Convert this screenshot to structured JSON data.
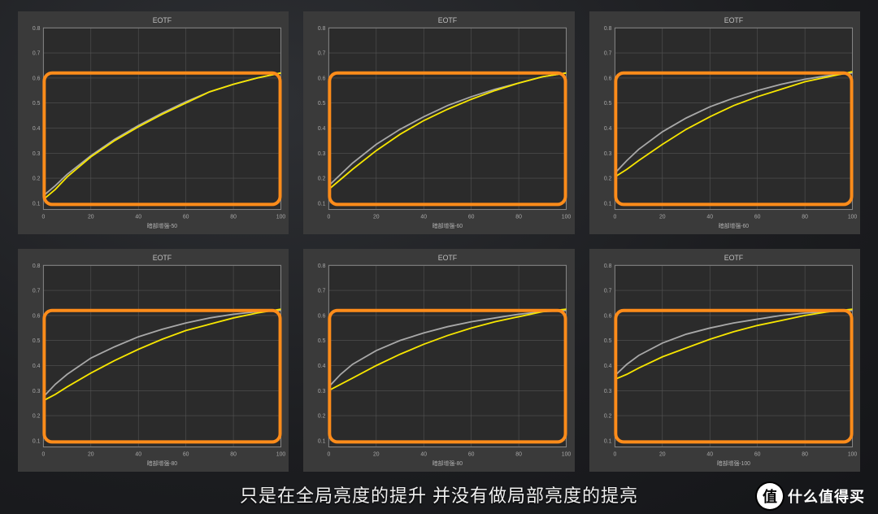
{
  "caption_text": "只是在全局亮度的提升 并没有做局部亮度的提亮",
  "watermark_badge": "值",
  "watermark_text": "什么值得买",
  "plot_style": {
    "panel_bg": "#3a3a3a",
    "plot_bg": "#2b2b2b",
    "grid_color": "#555555",
    "axis_color": "#888888",
    "ref_color": "#a8a8a8",
    "meas_color": "#f7e600",
    "highlight_color": "#ff8c1a",
    "highlight_radius": 10,
    "title_fontsize": 9,
    "tick_fontsize": 7,
    "xaxis_fontsize": 7
  },
  "shared_axes": {
    "title": "EOTF",
    "x_ticks": [
      0,
      20,
      40,
      60,
      80,
      100
    ],
    "y_ticks": [
      0.1,
      0.2,
      0.3,
      0.4,
      0.5,
      0.6,
      0.7,
      0.8
    ],
    "xlim": [
      0,
      100
    ],
    "ylim": [
      0.075,
      0.8
    ]
  },
  "charts": [
    {
      "xaxis_label": "暗部增强-50",
      "highlight_ylim": [
        0.095,
        0.62
      ],
      "reference_curve": [
        [
          0,
          0.13
        ],
        [
          5,
          0.17
        ],
        [
          10,
          0.215
        ],
        [
          20,
          0.29
        ],
        [
          30,
          0.355
        ],
        [
          40,
          0.41
        ],
        [
          50,
          0.46
        ],
        [
          60,
          0.505
        ],
        [
          70,
          0.545
        ],
        [
          80,
          0.575
        ],
        [
          90,
          0.6
        ],
        [
          100,
          0.62
        ]
      ],
      "measured_curve": [
        [
          0,
          0.115
        ],
        [
          5,
          0.155
        ],
        [
          10,
          0.205
        ],
        [
          20,
          0.285
        ],
        [
          30,
          0.35
        ],
        [
          40,
          0.405
        ],
        [
          50,
          0.455
        ],
        [
          60,
          0.5
        ],
        [
          70,
          0.545
        ],
        [
          80,
          0.575
        ],
        [
          90,
          0.6
        ],
        [
          100,
          0.62
        ]
      ]
    },
    {
      "xaxis_label": "暗部增强-60",
      "highlight_ylim": [
        0.095,
        0.62
      ],
      "reference_curve": [
        [
          0,
          0.17
        ],
        [
          5,
          0.215
        ],
        [
          10,
          0.26
        ],
        [
          20,
          0.335
        ],
        [
          30,
          0.395
        ],
        [
          40,
          0.445
        ],
        [
          50,
          0.49
        ],
        [
          60,
          0.525
        ],
        [
          70,
          0.555
        ],
        [
          80,
          0.58
        ],
        [
          90,
          0.605
        ],
        [
          100,
          0.62
        ]
      ],
      "measured_curve": [
        [
          0,
          0.155
        ],
        [
          5,
          0.195
        ],
        [
          10,
          0.235
        ],
        [
          20,
          0.31
        ],
        [
          30,
          0.375
        ],
        [
          40,
          0.43
        ],
        [
          50,
          0.475
        ],
        [
          60,
          0.515
        ],
        [
          70,
          0.55
        ],
        [
          80,
          0.58
        ],
        [
          90,
          0.605
        ],
        [
          100,
          0.62
        ]
      ]
    },
    {
      "xaxis_label": "暗部增强-60",
      "highlight_ylim": [
        0.095,
        0.62
      ],
      "reference_curve": [
        [
          0,
          0.22
        ],
        [
          5,
          0.27
        ],
        [
          10,
          0.315
        ],
        [
          20,
          0.385
        ],
        [
          30,
          0.44
        ],
        [
          40,
          0.485
        ],
        [
          50,
          0.52
        ],
        [
          60,
          0.55
        ],
        [
          70,
          0.575
        ],
        [
          80,
          0.595
        ],
        [
          90,
          0.61
        ],
        [
          100,
          0.62
        ]
      ],
      "measured_curve": [
        [
          0,
          0.205
        ],
        [
          5,
          0.235
        ],
        [
          10,
          0.27
        ],
        [
          20,
          0.335
        ],
        [
          30,
          0.395
        ],
        [
          40,
          0.445
        ],
        [
          50,
          0.49
        ],
        [
          60,
          0.525
        ],
        [
          70,
          0.555
        ],
        [
          80,
          0.585
        ],
        [
          90,
          0.605
        ],
        [
          100,
          0.625
        ]
      ]
    },
    {
      "xaxis_label": "暗部增强-80",
      "highlight_ylim": [
        0.095,
        0.62
      ],
      "reference_curve": [
        [
          0,
          0.275
        ],
        [
          5,
          0.325
        ],
        [
          10,
          0.365
        ],
        [
          20,
          0.43
        ],
        [
          30,
          0.475
        ],
        [
          40,
          0.515
        ],
        [
          50,
          0.545
        ],
        [
          60,
          0.57
        ],
        [
          70,
          0.59
        ],
        [
          80,
          0.605
        ],
        [
          90,
          0.615
        ],
        [
          100,
          0.62
        ]
      ],
      "measured_curve": [
        [
          0,
          0.26
        ],
        [
          5,
          0.285
        ],
        [
          10,
          0.315
        ],
        [
          20,
          0.37
        ],
        [
          30,
          0.42
        ],
        [
          40,
          0.465
        ],
        [
          50,
          0.505
        ],
        [
          60,
          0.54
        ],
        [
          70,
          0.565
        ],
        [
          80,
          0.59
        ],
        [
          90,
          0.61
        ],
        [
          100,
          0.625
        ]
      ]
    },
    {
      "xaxis_label": "暗部增强-80",
      "highlight_ylim": [
        0.095,
        0.62
      ],
      "reference_curve": [
        [
          0,
          0.315
        ],
        [
          5,
          0.365
        ],
        [
          10,
          0.405
        ],
        [
          20,
          0.46
        ],
        [
          30,
          0.5
        ],
        [
          40,
          0.53
        ],
        [
          50,
          0.555
        ],
        [
          60,
          0.575
        ],
        [
          70,
          0.59
        ],
        [
          80,
          0.605
        ],
        [
          90,
          0.615
        ],
        [
          100,
          0.62
        ]
      ],
      "measured_curve": [
        [
          0,
          0.3
        ],
        [
          5,
          0.325
        ],
        [
          10,
          0.35
        ],
        [
          20,
          0.4
        ],
        [
          30,
          0.445
        ],
        [
          40,
          0.485
        ],
        [
          50,
          0.52
        ],
        [
          60,
          0.55
        ],
        [
          70,
          0.575
        ],
        [
          80,
          0.595
        ],
        [
          90,
          0.615
        ],
        [
          100,
          0.625
        ]
      ]
    },
    {
      "xaxis_label": "暗部增强-100",
      "highlight_ylim": [
        0.095,
        0.62
      ],
      "reference_curve": [
        [
          0,
          0.36
        ],
        [
          5,
          0.405
        ],
        [
          10,
          0.44
        ],
        [
          20,
          0.49
        ],
        [
          30,
          0.525
        ],
        [
          40,
          0.55
        ],
        [
          50,
          0.57
        ],
        [
          60,
          0.585
        ],
        [
          70,
          0.6
        ],
        [
          80,
          0.61
        ],
        [
          90,
          0.615
        ],
        [
          100,
          0.62
        ]
      ],
      "measured_curve": [
        [
          0,
          0.345
        ],
        [
          5,
          0.365
        ],
        [
          10,
          0.39
        ],
        [
          20,
          0.435
        ],
        [
          30,
          0.47
        ],
        [
          40,
          0.505
        ],
        [
          50,
          0.535
        ],
        [
          60,
          0.56
        ],
        [
          70,
          0.58
        ],
        [
          80,
          0.6
        ],
        [
          90,
          0.615
        ],
        [
          100,
          0.625
        ]
      ]
    }
  ]
}
